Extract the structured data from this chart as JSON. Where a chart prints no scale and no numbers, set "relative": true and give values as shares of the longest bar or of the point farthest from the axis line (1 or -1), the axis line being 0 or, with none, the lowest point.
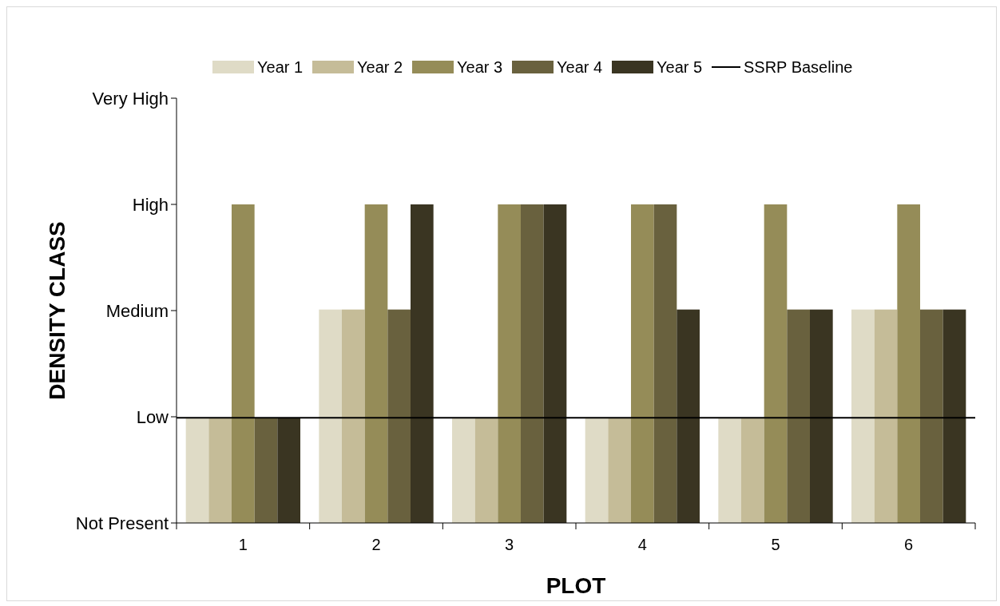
{
  "chart_data": {
    "type": "bar",
    "relative": true,
    "xlabel": "PLOT",
    "ylabel": "DENSITY CLASS",
    "categories": [
      "1",
      "2",
      "3",
      "4",
      "5",
      "6"
    ],
    "series": [
      {
        "name": "Year 1",
        "color": "#dfdbc6",
        "values": [
          0.33,
          0.67,
          0.33,
          0.33,
          0.33,
          0.67
        ]
      },
      {
        "name": "Year 2",
        "color": "#c5bc98",
        "values": [
          0.33,
          0.67,
          0.33,
          0.33,
          0.33,
          0.67
        ]
      },
      {
        "name": "Year 3",
        "color": "#958c58",
        "values": [
          1,
          1,
          1,
          1,
          1,
          1
        ]
      },
      {
        "name": "Year 4",
        "color": "#69613e",
        "values": [
          0.33,
          0.67,
          1,
          1,
          0.67,
          0.67
        ]
      },
      {
        "name": "Year 5",
        "color": "#3a3522",
        "values": [
          0.33,
          1,
          1,
          0.67,
          0.67,
          0.67
        ]
      }
    ],
    "annotations": [
      "Very High",
      "High",
      "Medium",
      "Low",
      "Not Present"
    ],
    "ref_lines": [
      {
        "axis": "y",
        "value": 0.33,
        "label": "SSRP Baseline",
        "color": "#000000"
      }
    ],
    "legend": "top",
    "grid": false
  }
}
